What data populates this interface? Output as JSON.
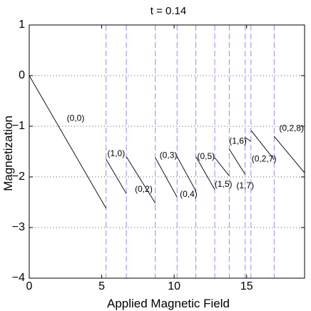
{
  "chart_data": {
    "type": "line",
    "title": "t = 0.14",
    "xlabel": "Applied Magnetic Field",
    "ylabel": "Magnetization",
    "xlim": [
      0,
      19
    ],
    "ylim": [
      -4,
      1
    ],
    "xticks": [
      0,
      5,
      10,
      15
    ],
    "xtick_labels": [
      "0",
      "5",
      "10",
      "15"
    ],
    "yticks": [
      1,
      0,
      -1,
      -2,
      -3,
      -4
    ],
    "ytick_labels": [
      "1",
      "0",
      "−1",
      "−2",
      "−3",
      "−4"
    ],
    "grid": {
      "horizontal_dotted": [
        0,
        -1,
        -2,
        -3
      ],
      "vertical_dashed": [
        5.3,
        6.7,
        8.7,
        10.2,
        11.5,
        12.8,
        13.8,
        14.9,
        15.3,
        16.9
      ]
    },
    "segments": [
      {
        "x": [
          0.0,
          5.3
        ],
        "y": [
          0.0,
          -2.62
        ]
      },
      {
        "x": [
          5.3,
          6.7
        ],
        "y": [
          -1.65,
          -2.33
        ]
      },
      {
        "x": [
          6.7,
          8.7
        ],
        "y": [
          -1.6,
          -2.52
        ]
      },
      {
        "x": [
          8.7,
          10.2
        ],
        "y": [
          -1.62,
          -2.4
        ]
      },
      {
        "x": [
          10.2,
          11.5
        ],
        "y": [
          -1.6,
          -2.28
        ]
      },
      {
        "x": [
          11.5,
          12.8
        ],
        "y": [
          -1.6,
          -2.25
        ]
      },
      {
        "x": [
          12.8,
          13.8
        ],
        "y": [
          -1.62,
          -1.98
        ]
      },
      {
        "x": [
          13.8,
          14.9
        ],
        "y": [
          -1.45,
          -1.95
        ]
      },
      {
        "x": [
          14.9,
          15.3
        ],
        "y": [
          -1.22,
          -1.3
        ]
      },
      {
        "x": [
          15.3,
          16.9
        ],
        "y": [
          -1.08,
          -1.66
        ]
      },
      {
        "x": [
          16.9,
          19.0
        ],
        "y": [
          -1.2,
          -1.92
        ]
      }
    ],
    "annotations": [
      {
        "text": "(0,0)",
        "x": 3.2,
        "y": -0.85
      },
      {
        "text": "(1,0)",
        "x": 6.0,
        "y": -1.55
      },
      {
        "text": "(0,2)",
        "x": 7.9,
        "y": -2.25
      },
      {
        "text": "(0,3)",
        "x": 9.6,
        "y": -1.58
      },
      {
        "text": "(0,4)",
        "x": 11.0,
        "y": -2.35
      },
      {
        "text": "(0,5)",
        "x": 12.2,
        "y": -1.6
      },
      {
        "text": "(1,5)",
        "x": 13.4,
        "y": -2.15
      },
      {
        "text": "(1,6)",
        "x": 14.4,
        "y": -1.3
      },
      {
        "text": "(1,7)",
        "x": 14.9,
        "y": -2.18
      },
      {
        "text": "(0,2,7)",
        "x": 16.2,
        "y": -1.65
      },
      {
        "text": "(0,2,8)",
        "x": 18.1,
        "y": -1.05
      }
    ]
  }
}
